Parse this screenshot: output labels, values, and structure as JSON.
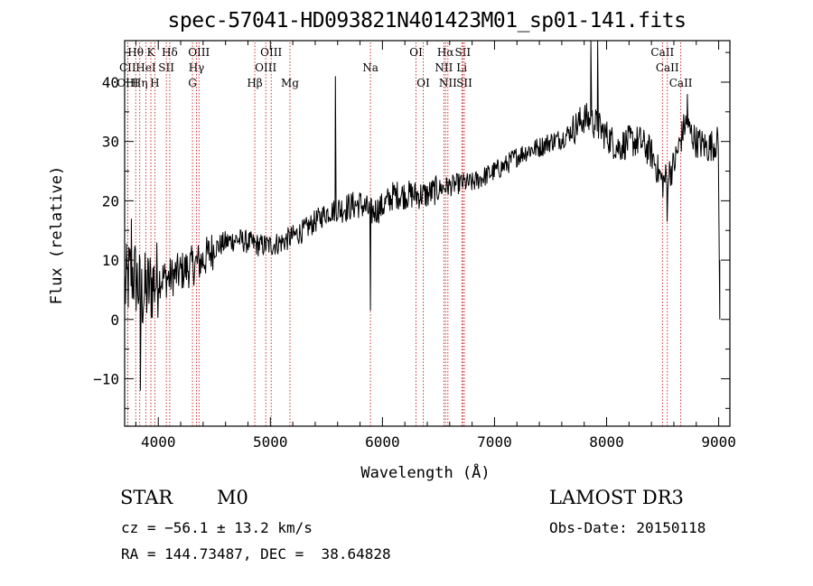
{
  "title": "spec-57041-HD093821N401423M01_sp01-141.fits",
  "info": {
    "class_label": "STAR",
    "subclass_label": "M0",
    "survey": "LAMOST DR3",
    "cz": "cz = −56.1 ± 13.2 km/s",
    "obs_date": "Obs-Date: 20150118",
    "coords": "RA = 144.73487, DEC =  38.64828"
  },
  "chart_data": {
    "type": "line",
    "xlabel": "Wavelength (Å)",
    "ylabel": "Flux (relative)",
    "xlim": [
      3700,
      9100
    ],
    "ylim": [
      -18,
      47
    ],
    "xticks": [
      4000,
      5000,
      6000,
      7000,
      8000,
      9000
    ],
    "yticks": [
      -10,
      0,
      10,
      20,
      30,
      40
    ],
    "grid": false,
    "spectral_lines": [
      {
        "label": "Hθ",
        "wave": 3798,
        "row": 1
      },
      {
        "label": "CII",
        "wave": 3727,
        "row": 2
      },
      {
        "label": "OIII",
        "wave": 3727,
        "row": 3
      },
      {
        "label": "Hη",
        "wave": 3835,
        "row": 3
      },
      {
        "label": "HeI",
        "wave": 3889,
        "row": 2
      },
      {
        "label": "K",
        "wave": 3934,
        "row": 1
      },
      {
        "label": "H",
        "wave": 3969,
        "row": 3
      },
      {
        "label": "SII",
        "wave": 4072,
        "row": 2
      },
      {
        "label": "Hδ",
        "wave": 4102,
        "row": 1
      },
      {
        "label": "G",
        "wave": 4305,
        "row": 3
      },
      {
        "label": "OIII",
        "wave": 4363,
        "row": 1
      },
      {
        "label": "Hγ",
        "wave": 4341,
        "row": 2
      },
      {
        "label": "Hβ",
        "wave": 4861,
        "row": 3
      },
      {
        "label": "OIII",
        "wave": 5007,
        "row": 1
      },
      {
        "label": "OIII",
        "wave": 4959,
        "row": 2
      },
      {
        "label": "Mg",
        "wave": 5175,
        "row": 3
      },
      {
        "label": "Na",
        "wave": 5893,
        "row": 2
      },
      {
        "label": "OI",
        "wave": 6300,
        "row": 1
      },
      {
        "label": "OI",
        "wave": 6364,
        "row": 3
      },
      {
        "label": "Hα",
        "wave": 6563,
        "row": 1
      },
      {
        "label": "NII",
        "wave": 6548,
        "row": 2
      },
      {
        "label": "NII",
        "wave": 6584,
        "row": 3
      },
      {
        "label": "SII",
        "wave": 6717,
        "row": 1
      },
      {
        "label": "Li",
        "wave": 6708,
        "row": 2
      },
      {
        "label": "SII",
        "wave": 6731,
        "row": 3
      },
      {
        "label": "CaII",
        "wave": 8498,
        "row": 1
      },
      {
        "label": "CaII",
        "wave": 8542,
        "row": 2
      },
      {
        "label": "CaII",
        "wave": 8662,
        "row": 3
      }
    ],
    "continuum": [
      [
        3700,
        5
      ],
      [
        3760,
        8
      ],
      [
        3800,
        7
      ],
      [
        3850,
        4
      ],
      [
        3900,
        5
      ],
      [
        3950,
        6
      ],
      [
        4000,
        7
      ],
      [
        4100,
        7
      ],
      [
        4200,
        8
      ],
      [
        4300,
        9
      ],
      [
        4400,
        10
      ],
      [
        4500,
        12
      ],
      [
        4600,
        13
      ],
      [
        4700,
        13.5
      ],
      [
        4800,
        13
      ],
      [
        4900,
        12.5
      ],
      [
        5000,
        12.5
      ],
      [
        5100,
        13
      ],
      [
        5200,
        14
      ],
      [
        5300,
        15
      ],
      [
        5400,
        16.5
      ],
      [
        5500,
        18
      ],
      [
        5600,
        18.5
      ],
      [
        5700,
        19
      ],
      [
        5800,
        19.5
      ],
      [
        5900,
        18
      ],
      [
        6000,
        19
      ],
      [
        6100,
        21
      ],
      [
        6200,
        21
      ],
      [
        6300,
        21
      ],
      [
        6400,
        21
      ],
      [
        6500,
        22
      ],
      [
        6600,
        22.5
      ],
      [
        6700,
        23
      ],
      [
        6800,
        23
      ],
      [
        6900,
        24
      ],
      [
        7000,
        25
      ],
      [
        7100,
        26
      ],
      [
        7200,
        27.5
      ],
      [
        7300,
        28.5
      ],
      [
        7400,
        29
      ],
      [
        7500,
        30
      ],
      [
        7600,
        30.5
      ],
      [
        7700,
        32
      ],
      [
        7800,
        34
      ],
      [
        7900,
        33
      ],
      [
        8000,
        31
      ],
      [
        8100,
        29
      ],
      [
        8200,
        30
      ],
      [
        8300,
        30
      ],
      [
        8400,
        28
      ],
      [
        8500,
        23
      ],
      [
        8600,
        26
      ],
      [
        8700,
        33
      ],
      [
        8800,
        30
      ],
      [
        8900,
        29
      ],
      [
        9000,
        30
      ]
    ],
    "features": [
      {
        "wave": 3760,
        "flux": 17
      },
      {
        "wave": 3840,
        "flux": -12
      },
      {
        "wave": 5580,
        "flux": 41
      },
      {
        "wave": 5893,
        "flux": 1.5
      },
      {
        "wave": 7860,
        "flux": 48
      },
      {
        "wave": 7920,
        "flux": 48
      },
      {
        "wave": 8540,
        "flux": 16.5
      },
      {
        "wave": 8720,
        "flux": 38
      },
      {
        "wave": 9010,
        "flux": 0
      },
      {
        "wave": 9010,
        "flux": 10
      }
    ]
  }
}
